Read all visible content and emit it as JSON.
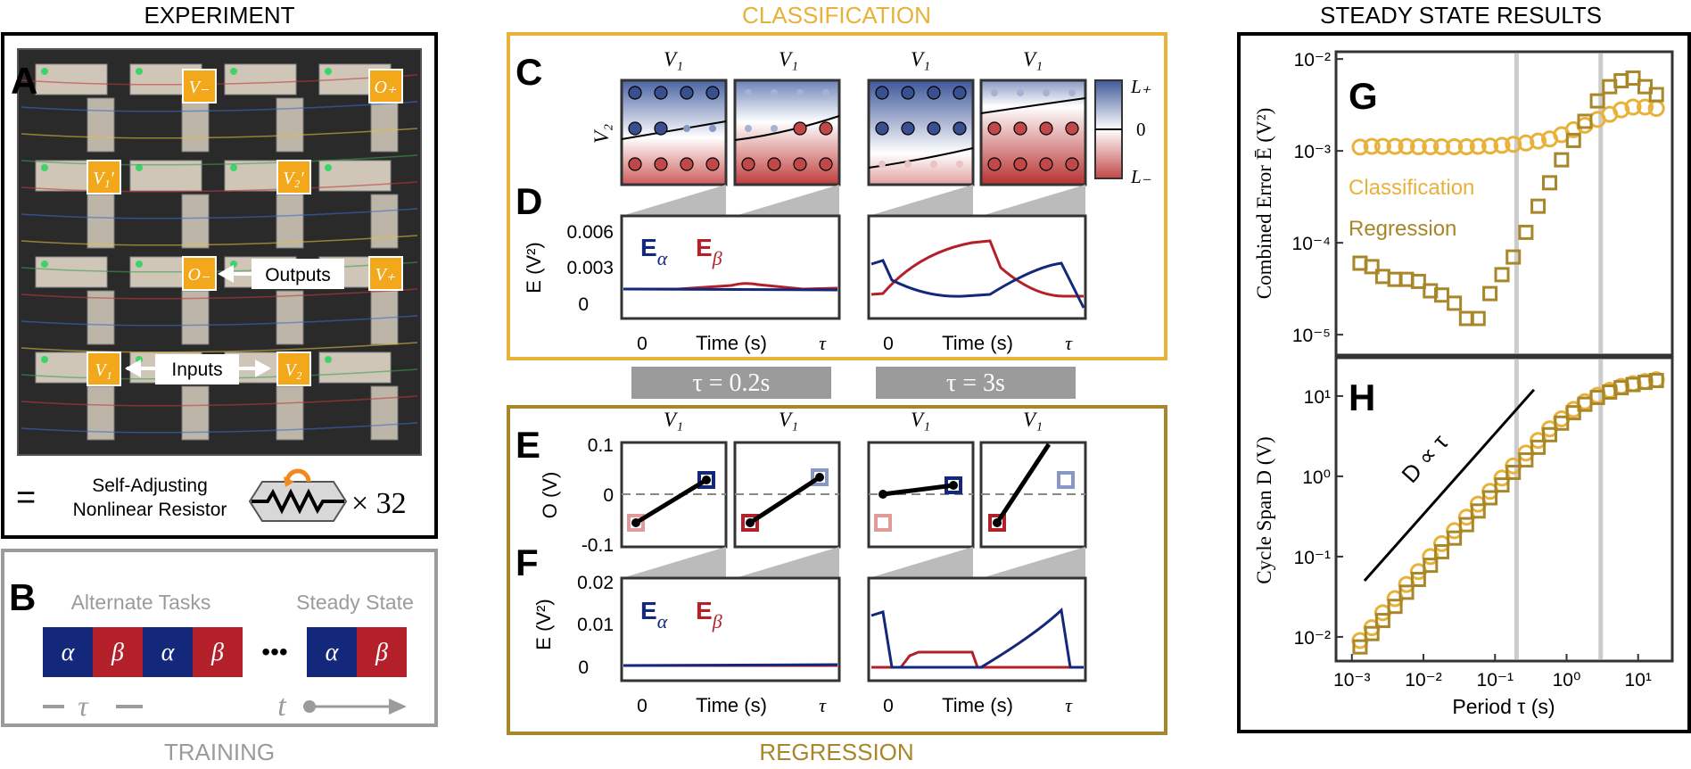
{
  "sections": {
    "experiment": "EXPERIMENT",
    "classification": "CLASSIFICATION",
    "steady_state": "STEADY STATE RESULTS",
    "training": "TRAINING",
    "regression": "REGRESSION"
  },
  "panel_letters": [
    "A",
    "B",
    "C",
    "D",
    "E",
    "F",
    "G",
    "H"
  ],
  "colors": {
    "classification": "#E8B23A",
    "regression": "#A8862A",
    "blue": "#13287A",
    "red": "#B3202A",
    "gray_box": "#9B9B9B",
    "gray_line": "#CCCCCC",
    "board_bg": "#2A2A2A"
  },
  "panel_a": {
    "node_labels": [
      "V₋",
      "O₊",
      "V₁′",
      "V₂′",
      "O₋",
      "V₊",
      "V₁",
      "V₂"
    ],
    "outputs": "Outputs",
    "inputs": "Inputs",
    "equals": "=",
    "resistor_line1": "Self-Adjusting",
    "resistor_line2": "Nonlinear Resistor",
    "times": "× 32"
  },
  "panel_b": {
    "alternate": "Alternate Tasks",
    "steady": "Steady State",
    "alpha": "α",
    "beta": "β",
    "dots": "•••",
    "tau": "τ",
    "t": "t"
  },
  "tau_labels": [
    "τ = 0.2s",
    "τ = 3s"
  ],
  "panel_c": {
    "title_v1": "V₁",
    "ylabel_v2": "V₂",
    "colorbar": [
      "L₊",
      "0",
      "L₋"
    ]
  },
  "time_axis": {
    "start": "0",
    "label": "Time (s)",
    "end": "τ"
  },
  "legend": {
    "E_alpha": "E",
    "alpha_sub": "α",
    "E_beta": "E",
    "beta_sub": "β"
  },
  "panel_d": {
    "ylabel": "E (V²)",
    "yticks": [
      "0.006",
      "0.003",
      "0"
    ]
  },
  "panel_e": {
    "ylabel": "O (V)",
    "yticks": [
      "0.1",
      "0",
      "-0.1"
    ]
  },
  "panel_f": {
    "ylabel": "E (V²)",
    "yticks": [
      "0.02",
      "0.01",
      "0"
    ]
  },
  "chart_data": [
    {
      "id": "G",
      "type": "scatter",
      "title": "",
      "xlabel": "Period τ (s)",
      "ylabel": "Combined Error Ē (V²)",
      "xscale": "log",
      "yscale": "log",
      "xlim": [
        0.0006,
        30
      ],
      "ylim": [
        6e-06,
        0.012
      ],
      "yticks": [
        "10⁻²",
        "10⁻³",
        "10⁻⁴",
        "10⁻⁵"
      ],
      "vlines": [
        0.2,
        3
      ],
      "series": [
        {
          "name": "Classification",
          "marker": "circle",
          "x": [
            0.0013,
            0.0019,
            0.0027,
            0.004,
            0.0058,
            0.0085,
            0.0125,
            0.018,
            0.027,
            0.04,
            0.058,
            0.085,
            0.125,
            0.18,
            0.27,
            0.4,
            0.58,
            0.85,
            1.25,
            1.8,
            2.7,
            4.0,
            5.8,
            8.5,
            12.5,
            18
          ],
          "values": [
            0.0011,
            0.00112,
            0.00112,
            0.00112,
            0.00112,
            0.00111,
            0.00111,
            0.00111,
            0.00111,
            0.00111,
            0.00112,
            0.00113,
            0.00115,
            0.00118,
            0.00122,
            0.00128,
            0.00135,
            0.0015,
            0.0017,
            0.0019,
            0.0022,
            0.0025,
            0.0028,
            0.003,
            0.003,
            0.0029
          ]
        },
        {
          "name": "Regression",
          "marker": "square",
          "x": [
            0.0013,
            0.0019,
            0.0027,
            0.004,
            0.0058,
            0.0085,
            0.0125,
            0.018,
            0.027,
            0.04,
            0.058,
            0.085,
            0.125,
            0.18,
            0.27,
            0.4,
            0.58,
            0.85,
            1.25,
            1.8,
            2.7,
            4.0,
            5.8,
            8.5,
            12.5,
            18
          ],
          "values": [
            6e-05,
            5.5e-05,
            4.3e-05,
            4e-05,
            4e-05,
            3.8e-05,
            3e-05,
            2.7e-05,
            2.2e-05,
            1.5e-05,
            1.5e-05,
            2.8e-05,
            4.5e-05,
            7e-05,
            0.00013,
            0.00025,
            0.00045,
            0.0008,
            0.0013,
            0.0021,
            0.0035,
            0.005,
            0.0058,
            0.0062,
            0.005,
            0.0041
          ]
        }
      ],
      "annotations": [
        "Classification",
        "Regression"
      ]
    },
    {
      "id": "H",
      "type": "scatter",
      "title": "",
      "xlabel": "Period τ (s)",
      "ylabel": "Cycle Span D (V)",
      "xscale": "log",
      "yscale": "log",
      "xlim": [
        0.0006,
        30
      ],
      "ylim": [
        0.005,
        30
      ],
      "xticks": [
        "10⁻³",
        "10⁻²",
        "10⁻¹",
        "10⁰",
        "10¹"
      ],
      "yticks": [
        "10¹",
        "10⁰",
        "10⁻¹",
        "10⁻²"
      ],
      "vlines": [
        0.2,
        3
      ],
      "trend_label": "D ∝ τ",
      "trend_line": {
        "x": [
          0.0015,
          0.35
        ],
        "y": [
          0.05,
          12
        ]
      },
      "series": [
        {
          "name": "Classification",
          "marker": "circle",
          "x": [
            0.0013,
            0.0019,
            0.0027,
            0.004,
            0.0058,
            0.0085,
            0.0125,
            0.018,
            0.027,
            0.04,
            0.058,
            0.085,
            0.125,
            0.18,
            0.27,
            0.4,
            0.58,
            0.85,
            1.25,
            1.8,
            2.7,
            4.0,
            5.8,
            8.5,
            12.5,
            18
          ],
          "values": [
            0.009,
            0.013,
            0.02,
            0.03,
            0.045,
            0.065,
            0.1,
            0.145,
            0.21,
            0.31,
            0.45,
            0.65,
            0.95,
            1.35,
            1.95,
            2.8,
            3.9,
            5.2,
            6.8,
            8.5,
            10.2,
            11.8,
            13.2,
            14.3,
            15.2,
            16
          ]
        },
        {
          "name": "Regression",
          "marker": "square",
          "x": [
            0.0013,
            0.0019,
            0.0027,
            0.004,
            0.0058,
            0.0085,
            0.0125,
            0.018,
            0.027,
            0.04,
            0.058,
            0.085,
            0.125,
            0.18,
            0.27,
            0.4,
            0.58,
            0.85,
            1.25,
            1.8,
            2.7,
            4.0,
            5.8,
            8.5,
            12.5,
            18
          ],
          "values": [
            0.0075,
            0.011,
            0.016,
            0.024,
            0.036,
            0.052,
            0.078,
            0.115,
            0.17,
            0.25,
            0.37,
            0.54,
            0.78,
            1.12,
            1.6,
            2.3,
            3.3,
            4.6,
            6.2,
            7.9,
            9.6,
            11.2,
            12.7,
            13.9,
            14.8,
            15.6
          ]
        }
      ]
    }
  ]
}
